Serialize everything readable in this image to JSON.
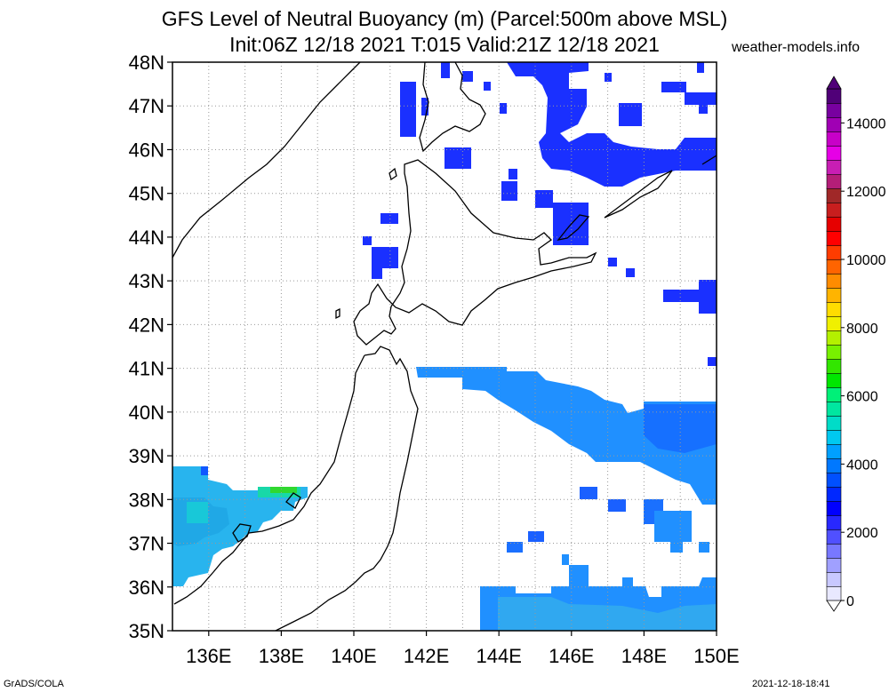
{
  "header": {
    "title_line1": "GFS Level of Neutral Buoyancy (m) (Parcel:500m above MSL)",
    "title_line2": "Init:06Z 12/18 2021 T:015 Valid:21Z 12/18 2021",
    "credit": "weather-models.info"
  },
  "footer": {
    "left": "GrADS/COLA",
    "right": "2021-12-18-18:41"
  },
  "map": {
    "lat_labels": [
      "48N",
      "47N",
      "46N",
      "45N",
      "44N",
      "43N",
      "42N",
      "41N",
      "40N",
      "39N",
      "38N",
      "37N",
      "36N",
      "35N"
    ],
    "lon_labels": [
      "136E",
      "138E",
      "140E",
      "142E",
      "144E",
      "146E",
      "148E",
      "150E"
    ]
  },
  "colorbar": {
    "labels": [
      "14000",
      "12000",
      "10000",
      "8000",
      "6000",
      "4000",
      "2000",
      "0"
    ],
    "colors": [
      "#e8e8ff",
      "#c8c8ff",
      "#a0a0ff",
      "#7878ff",
      "#5050ff",
      "#2828ff",
      "#0000ff",
      "#0028ff",
      "#0050ff",
      "#0078ff",
      "#00a0ff",
      "#00c8f0",
      "#00dcc8",
      "#00e6a0",
      "#00f078",
      "#00e600",
      "#32e600",
      "#78f000",
      "#b4f000",
      "#f0f000",
      "#ffdc00",
      "#ffb400",
      "#ff8c00",
      "#ff6400",
      "#ff3c00",
      "#ff0000",
      "#e60000",
      "#c81e1e",
      "#a02828",
      "#b41e78",
      "#c81eb4",
      "#e600e6",
      "#c800c8",
      "#a000b4",
      "#7800a0",
      "#500078"
    ]
  }
}
